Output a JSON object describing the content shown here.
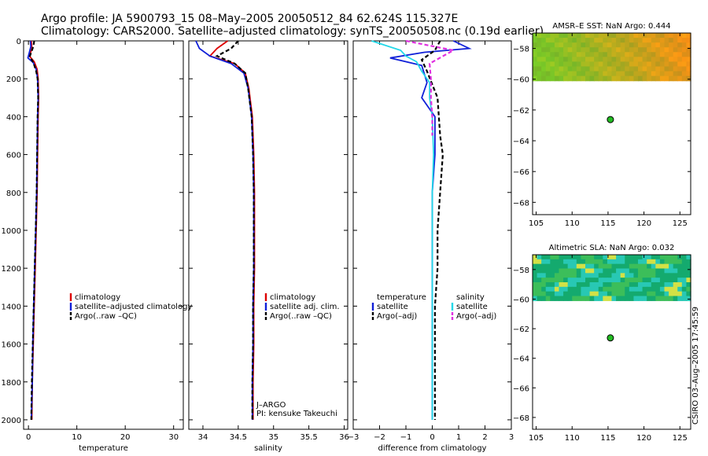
{
  "header": {
    "line1": "Argo profile: JA 5900793_15 08–May–2005 20050512_84 62.624S 115.327E",
    "line2": "Climatology: CARS2000. Satellite–adjusted climatology: synTS_20050508.nc (0.19d earlier)"
  },
  "footer_note": "CSIRO 03–Aug–2005 17:45:59",
  "colors": {
    "climatology": "#dd0000",
    "satellite": "#1020d8",
    "argo": "#000000",
    "salinity_sat": "#22d8e8",
    "salinity_argo": "#e030e0",
    "float_marker": "#22bb22"
  },
  "chart_data": [
    {
      "type": "line",
      "id": "temperature",
      "xlabel": "temperature",
      "ylabel": "",
      "xlim": [
        -1,
        32
      ],
      "ylim": [
        2050,
        0
      ],
      "xticks": [
        0,
        10,
        20,
        30
      ],
      "yticks": [
        0,
        200,
        400,
        600,
        800,
        1000,
        1200,
        1400,
        1600,
        1800,
        2000
      ],
      "legend": [
        "climatology",
        "satellite–adjusted climatology",
        "Argo(..raw –QC)"
      ],
      "series": [
        {
          "name": "climatology",
          "color": "#dd0000",
          "dash": "",
          "points": [
            [
              0.6,
              0
            ],
            [
              0.7,
              40
            ],
            [
              0.2,
              80
            ],
            [
              1.2,
              110
            ],
            [
              1.8,
              150
            ],
            [
              2.0,
              200
            ],
            [
              2.1,
              300
            ],
            [
              2.0,
              400
            ],
            [
              1.9,
              600
            ],
            [
              1.8,
              800
            ],
            [
              1.6,
              1000
            ],
            [
              1.4,
              1200
            ],
            [
              1.2,
              1400
            ],
            [
              1.0,
              1600
            ],
            [
              0.8,
              1800
            ],
            [
              0.7,
              2000
            ]
          ]
        },
        {
          "name": "satellite-adjusted climatology",
          "color": "#1020d8",
          "dash": "",
          "points": [
            [
              0.4,
              0
            ],
            [
              0.5,
              30
            ],
            [
              -0.1,
              90
            ],
            [
              1.0,
              115
            ],
            [
              1.6,
              150
            ],
            [
              1.9,
              200
            ],
            [
              2.0,
              300
            ],
            [
              1.9,
              400
            ],
            [
              1.8,
              600
            ],
            [
              1.7,
              800
            ],
            [
              1.5,
              1000
            ],
            [
              1.3,
              1200
            ],
            [
              1.1,
              1400
            ],
            [
              0.9,
              1600
            ],
            [
              0.8,
              1800
            ],
            [
              0.6,
              2000
            ]
          ]
        },
        {
          "name": "Argo",
          "color": "#000000",
          "dash": "5,3",
          "points": [
            [
              1.2,
              0
            ],
            [
              1.0,
              30
            ],
            [
              0.3,
              80
            ],
            [
              1.1,
              120
            ],
            [
              1.6,
              160
            ],
            [
              1.9,
              200
            ],
            [
              2.0,
              300
            ],
            [
              1.9,
              400
            ],
            [
              1.8,
              600
            ],
            [
              1.7,
              800
            ],
            [
              1.5,
              1000
            ],
            [
              1.3,
              1200
            ],
            [
              1.1,
              1400
            ],
            [
              0.9,
              1600
            ],
            [
              0.7,
              1800
            ],
            [
              0.6,
              2000
            ]
          ]
        }
      ]
    },
    {
      "type": "line",
      "id": "salinity",
      "xlabel": "salinity",
      "ylabel": "",
      "xlim": [
        33.8,
        36.05
      ],
      "ylim": [
        2050,
        0
      ],
      "xticks": [
        34,
        34.5,
        35,
        35.5,
        36
      ],
      "yticks": [
        0,
        200,
        400,
        600,
        800,
        1000,
        1200,
        1400,
        1600,
        1800,
        2000
      ],
      "legend": [
        "climatology",
        "satellite adj. clim.",
        "Argo(..raw –QC)"
      ],
      "annotation": [
        "J–ARGO",
        "PI: kensuke Takeuchi"
      ],
      "series": [
        {
          "name": "climatology",
          "color": "#dd0000",
          "dash": "",
          "points": [
            [
              34.35,
              0
            ],
            [
              34.2,
              40
            ],
            [
              34.1,
              80
            ],
            [
              34.45,
              120
            ],
            [
              34.6,
              170
            ],
            [
              34.65,
              250
            ],
            [
              34.7,
              400
            ],
            [
              34.72,
              600
            ],
            [
              34.73,
              800
            ],
            [
              34.73,
              1000
            ],
            [
              34.73,
              1200
            ],
            [
              34.72,
              1400
            ],
            [
              34.72,
              1600
            ],
            [
              34.71,
              1800
            ],
            [
              34.71,
              2000
            ]
          ]
        },
        {
          "name": "satellite adj. clim.",
          "color": "#1020d8",
          "dash": "",
          "points": [
            [
              33.9,
              0
            ],
            [
              33.95,
              40
            ],
            [
              34.1,
              80
            ],
            [
              34.4,
              120
            ],
            [
              34.58,
              170
            ],
            [
              34.64,
              250
            ],
            [
              34.69,
              400
            ],
            [
              34.71,
              600
            ],
            [
              34.72,
              800
            ],
            [
              34.72,
              1000
            ],
            [
              34.72,
              1200
            ],
            [
              34.71,
              1400
            ],
            [
              34.71,
              1600
            ],
            [
              34.7,
              1800
            ],
            [
              34.7,
              2000
            ]
          ]
        },
        {
          "name": "Argo",
          "color": "#000000",
          "dash": "5,3",
          "points": [
            [
              34.5,
              0
            ],
            [
              34.4,
              40
            ],
            [
              34.2,
              80
            ],
            [
              34.45,
              120
            ],
            [
              34.6,
              170
            ],
            [
              34.64,
              250
            ],
            [
              34.69,
              400
            ],
            [
              34.71,
              600
            ],
            [
              34.72,
              800
            ],
            [
              34.72,
              1000
            ],
            [
              34.72,
              1200
            ],
            [
              34.71,
              1400
            ],
            [
              34.71,
              1600
            ],
            [
              34.7,
              1800
            ],
            [
              34.7,
              2000
            ]
          ]
        }
      ]
    },
    {
      "type": "line",
      "id": "difference",
      "xlabel": "difference from climatology",
      "ylabel": "",
      "xlim": [
        -3,
        3
      ],
      "ylim": [
        2050,
        0
      ],
      "xticks": [
        -3,
        -2,
        -1,
        0,
        1,
        2,
        3
      ],
      "yticks": [
        0,
        200,
        400,
        600,
        800,
        1000,
        1200,
        1400,
        1600,
        1800,
        2000
      ],
      "legend_left": [
        "temperature",
        "satellite",
        "Argo(–adj)"
      ],
      "legend_right": [
        "salinity",
        "satellite",
        "Argo(–adj)"
      ],
      "series": [
        {
          "name": "temperature satellite",
          "color": "#1020d8",
          "dash": "",
          "points": [
            [
              0.8,
              0
            ],
            [
              1.4,
              40
            ],
            [
              -0.3,
              60
            ],
            [
              -1.6,
              90
            ],
            [
              -0.4,
              130
            ],
            [
              -0.2,
              220
            ],
            [
              -0.4,
              300
            ],
            [
              0.1,
              400
            ],
            [
              0.1,
              600
            ],
            [
              0.0,
              800
            ],
            [
              0.0,
              1000
            ],
            [
              0.0,
              1200
            ],
            [
              0.0,
              1400
            ],
            [
              0.0,
              1600
            ],
            [
              0.0,
              1800
            ],
            [
              0.0,
              2000
            ]
          ]
        },
        {
          "name": "temperature Argo",
          "color": "#000000",
          "dash": "5,3",
          "points": [
            [
              0.3,
              0
            ],
            [
              0.1,
              50
            ],
            [
              -0.4,
              100
            ],
            [
              -0.2,
              160
            ],
            [
              0.2,
              300
            ],
            [
              0.3,
              500
            ],
            [
              0.4,
              600
            ],
            [
              0.3,
              800
            ],
            [
              0.2,
              1000
            ],
            [
              0.2,
              1200
            ],
            [
              0.1,
              1400
            ],
            [
              0.1,
              1600
            ],
            [
              0.1,
              1800
            ],
            [
              0.1,
              2000
            ]
          ]
        },
        {
          "name": "salinity satellite",
          "color": "#22d8e8",
          "dash": "",
          "points": [
            [
              -2.3,
              0
            ],
            [
              -1.2,
              50
            ],
            [
              -1.0,
              80
            ],
            [
              -0.6,
              110
            ],
            [
              -0.4,
              160
            ],
            [
              -0.1,
              220
            ],
            [
              -0.1,
              300
            ],
            [
              0.0,
              400
            ],
            [
              0.05,
              600
            ],
            [
              0.0,
              800
            ],
            [
              0.0,
              1000
            ],
            [
              0.0,
              1200
            ],
            [
              0.0,
              1400
            ],
            [
              0.0,
              1600
            ],
            [
              0.0,
              1800
            ],
            [
              0.0,
              2000
            ]
          ]
        },
        {
          "name": "salinity Argo",
          "color": "#e030e0",
          "dash": "5,3",
          "points": [
            [
              -1.0,
              0
            ],
            [
              0.8,
              50
            ],
            [
              -0.1,
              120
            ],
            [
              -0.05,
              200
            ],
            [
              -0.05,
              300
            ],
            [
              0.0,
              400
            ],
            [
              0.0,
              500
            ]
          ]
        }
      ]
    },
    {
      "type": "heatmap",
      "id": "sst_map",
      "title": "AMSR–E SST: NaN Argo: 0.444",
      "xlim": [
        104.5,
        126.5
      ],
      "ylim": [
        -68.8,
        -57
      ],
      "xticks": [
        105,
        110,
        115,
        120,
        125
      ],
      "yticks": [
        -58,
        -60,
        -62,
        -64,
        -66,
        -68
      ],
      "data_lat_range": [
        -60.1,
        -57
      ],
      "float_position": [
        115.327,
        -62.624
      ]
    },
    {
      "type": "heatmap",
      "id": "sla_map",
      "title": "Altimetric SLA: NaN Argo: 0.032",
      "xlim": [
        104.5,
        126.5
      ],
      "ylim": [
        -68.8,
        -57
      ],
      "xticks": [
        105,
        110,
        115,
        120,
        125
      ],
      "yticks": [
        -58,
        -60,
        -62,
        -64,
        -66,
        -68
      ],
      "data_lat_range": [
        -60.1,
        -57
      ],
      "float_position": [
        115.327,
        -62.624
      ]
    }
  ]
}
